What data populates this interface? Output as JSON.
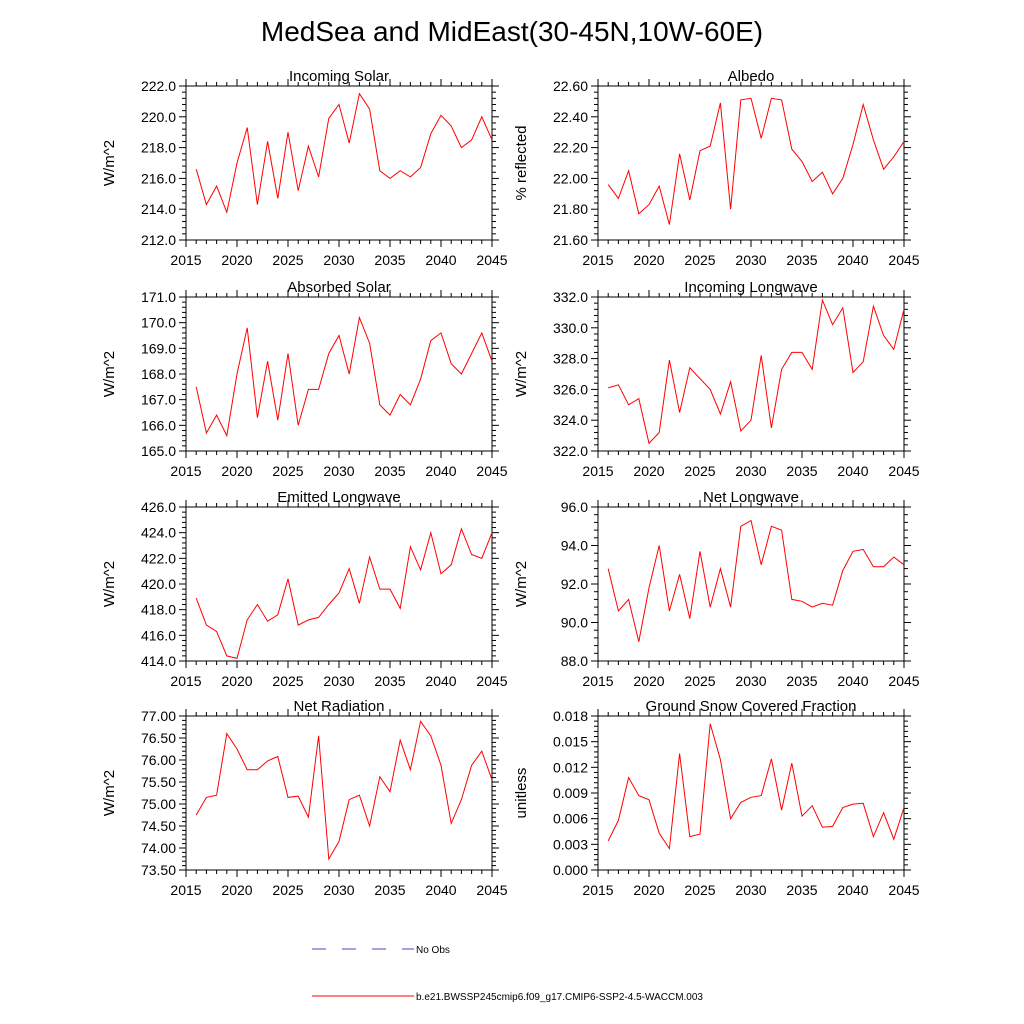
{
  "figure": {
    "title": "MedSea and MidEast(30-45N,10W-60E)",
    "line_color": "#ff0000",
    "obs_color": "#4444cc",
    "legend": {
      "obs_label": "No Obs",
      "model_label": "b.e21.BWSSP245cmip6.f09_g17.CMIP6-SSP2-4.5-WACCM.003"
    }
  },
  "chart_data": [
    {
      "type": "line",
      "title": "Incoming Solar",
      "ylabel": "W/m^2",
      "xlabel": "",
      "xlim": [
        2015,
        2045
      ],
      "ylim": [
        212,
        222
      ],
      "yticks": [
        212,
        214,
        216,
        218,
        220,
        222
      ],
      "ytick_labels": [
        "212.0",
        "214.0",
        "216.0",
        "218.0",
        "220.0",
        "222.0"
      ],
      "xticks": [
        2015,
        2020,
        2025,
        2030,
        2035,
        2040,
        2045
      ],
      "x": [
        2016,
        2017,
        2018,
        2019,
        2020,
        2021,
        2022,
        2023,
        2024,
        2025,
        2026,
        2027,
        2028,
        2029,
        2030,
        2031,
        2032,
        2033,
        2034,
        2035,
        2036,
        2037,
        2038,
        2039,
        2040,
        2041,
        2042,
        2043,
        2044,
        2045
      ],
      "series": [
        {
          "name": "b.e21.BWSSP245cmip6.f09_g17.CMIP6-SSP2-4.5-WACCM.003",
          "values": [
            216.6,
            214.3,
            215.5,
            213.8,
            217.0,
            219.3,
            214.3,
            218.4,
            214.7,
            219.0,
            215.2,
            218.1,
            216.1,
            219.9,
            220.8,
            218.3,
            221.5,
            220.5,
            216.5,
            216.0,
            216.5,
            216.1,
            216.7,
            218.9,
            220.1,
            219.4,
            218.0,
            218.5,
            220.0,
            218.5
          ]
        }
      ]
    },
    {
      "type": "line",
      "title": "Albedo",
      "ylabel": "% reflected",
      "xlabel": "",
      "xlim": [
        2015,
        2045
      ],
      "ylim": [
        21.6,
        22.6
      ],
      "yticks": [
        21.6,
        21.8,
        22.0,
        22.2,
        22.4,
        22.6
      ],
      "ytick_labels": [
        "21.60",
        "21.80",
        "22.00",
        "22.20",
        "22.40",
        "22.60"
      ],
      "xticks": [
        2015,
        2020,
        2025,
        2030,
        2035,
        2040,
        2045
      ],
      "x": [
        2016,
        2017,
        2018,
        2019,
        2020,
        2021,
        2022,
        2023,
        2024,
        2025,
        2026,
        2027,
        2028,
        2029,
        2030,
        2031,
        2032,
        2033,
        2034,
        2035,
        2036,
        2037,
        2038,
        2039,
        2040,
        2041,
        2042,
        2043,
        2044,
        2045
      ],
      "series": [
        {
          "name": "b.e21.BWSSP245cmip6.f09_g17.CMIP6-SSP2-4.5-WACCM.003",
          "values": [
            21.96,
            21.87,
            22.05,
            21.77,
            21.83,
            21.95,
            21.7,
            22.16,
            21.86,
            22.18,
            22.21,
            22.49,
            21.8,
            22.51,
            22.52,
            22.26,
            22.52,
            22.51,
            22.19,
            22.11,
            21.98,
            22.04,
            21.9,
            22.0,
            22.22,
            22.48,
            22.25,
            22.06,
            22.14,
            22.24
          ]
        }
      ]
    },
    {
      "type": "line",
      "title": "Absorbed Solar",
      "ylabel": "W/m^2",
      "xlabel": "",
      "xlim": [
        2015,
        2045
      ],
      "ylim": [
        165,
        171
      ],
      "yticks": [
        165,
        166,
        167,
        168,
        169,
        170,
        171
      ],
      "ytick_labels": [
        "165.0",
        "166.0",
        "167.0",
        "168.0",
        "169.0",
        "170.0",
        "171.0"
      ],
      "xticks": [
        2015,
        2020,
        2025,
        2030,
        2035,
        2040,
        2045
      ],
      "x": [
        2016,
        2017,
        2018,
        2019,
        2020,
        2021,
        2022,
        2023,
        2024,
        2025,
        2026,
        2027,
        2028,
        2029,
        2030,
        2031,
        2032,
        2033,
        2034,
        2035,
        2036,
        2037,
        2038,
        2039,
        2040,
        2041,
        2042,
        2043,
        2044,
        2045
      ],
      "series": [
        {
          "name": "b.e21.BWSSP245cmip6.f09_g17.CMIP6-SSP2-4.5-WACCM.003",
          "values": [
            167.5,
            165.7,
            166.4,
            165.6,
            168.0,
            169.8,
            166.3,
            168.5,
            166.2,
            168.8,
            166.0,
            167.4,
            167.4,
            168.8,
            169.5,
            168.0,
            170.2,
            169.2,
            166.8,
            166.4,
            167.2,
            166.8,
            167.8,
            169.3,
            169.6,
            168.4,
            168.0,
            168.8,
            169.6,
            168.5
          ]
        }
      ]
    },
    {
      "type": "line",
      "title": "Incoming Longwave",
      "ylabel": "W/m^2",
      "xlabel": "",
      "xlim": [
        2015,
        2045
      ],
      "ylim": [
        322,
        332
      ],
      "yticks": [
        322,
        324,
        326,
        328,
        330,
        332
      ],
      "ytick_labels": [
        "322.0",
        "324.0",
        "326.0",
        "328.0",
        "330.0",
        "332.0"
      ],
      "xticks": [
        2015,
        2020,
        2025,
        2030,
        2035,
        2040,
        2045
      ],
      "x": [
        2016,
        2017,
        2018,
        2019,
        2020,
        2021,
        2022,
        2023,
        2024,
        2025,
        2026,
        2027,
        2028,
        2029,
        2030,
        2031,
        2032,
        2033,
        2034,
        2035,
        2036,
        2037,
        2038,
        2039,
        2040,
        2041,
        2042,
        2043,
        2044,
        2045
      ],
      "series": [
        {
          "name": "b.e21.BWSSP245cmip6.f09_g17.CMIP6-SSP2-4.5-WACCM.003",
          "values": [
            326.1,
            326.3,
            325.0,
            325.4,
            322.5,
            323.2,
            327.9,
            324.5,
            327.4,
            326.7,
            326.0,
            324.4,
            326.5,
            323.3,
            324.0,
            328.2,
            323.5,
            327.3,
            328.4,
            328.4,
            327.3,
            331.8,
            330.2,
            331.3,
            327.1,
            327.8,
            331.4,
            329.5,
            328.6,
            331.2
          ]
        }
      ]
    },
    {
      "type": "line",
      "title": "Emitted Longwave",
      "ylabel": "W/m^2",
      "xlabel": "",
      "xlim": [
        2015,
        2045
      ],
      "ylim": [
        414,
        426
      ],
      "yticks": [
        414,
        416,
        418,
        420,
        422,
        424,
        426
      ],
      "ytick_labels": [
        "414.0",
        "416.0",
        "418.0",
        "420.0",
        "422.0",
        "424.0",
        "426.0"
      ],
      "xticks": [
        2015,
        2020,
        2025,
        2030,
        2035,
        2040,
        2045
      ],
      "x": [
        2016,
        2017,
        2018,
        2019,
        2020,
        2021,
        2022,
        2023,
        2024,
        2025,
        2026,
        2027,
        2028,
        2029,
        2030,
        2031,
        2032,
        2033,
        2034,
        2035,
        2036,
        2037,
        2038,
        2039,
        2040,
        2041,
        2042,
        2043,
        2044,
        2045
      ],
      "series": [
        {
          "name": "b.e21.BWSSP245cmip6.f09_g17.CMIP6-SSP2-4.5-WACCM.003",
          "values": [
            418.9,
            416.8,
            416.3,
            414.4,
            414.2,
            417.2,
            418.4,
            417.1,
            417.6,
            420.4,
            416.8,
            417.2,
            417.4,
            418.4,
            419.3,
            421.2,
            418.5,
            422.1,
            419.6,
            419.6,
            418.1,
            422.9,
            421.1,
            424.0,
            420.8,
            421.5,
            424.3,
            422.3,
            422.0,
            424.0
          ]
        }
      ]
    },
    {
      "type": "line",
      "title": "Net Longwave",
      "ylabel": "W/m^2",
      "xlabel": "",
      "xlim": [
        2015,
        2045
      ],
      "ylim": [
        88,
        96
      ],
      "yticks": [
        88,
        90,
        92,
        94,
        96
      ],
      "ytick_labels": [
        "88.0",
        "90.0",
        "92.0",
        "94.0",
        "96.0"
      ],
      "xticks": [
        2015,
        2020,
        2025,
        2030,
        2035,
        2040,
        2045
      ],
      "x": [
        2016,
        2017,
        2018,
        2019,
        2020,
        2021,
        2022,
        2023,
        2024,
        2025,
        2026,
        2027,
        2028,
        2029,
        2030,
        2031,
        2032,
        2033,
        2034,
        2035,
        2036,
        2037,
        2038,
        2039,
        2040,
        2041,
        2042,
        2043,
        2044,
        2045
      ],
      "series": [
        {
          "name": "b.e21.BWSSP245cmip6.f09_g17.CMIP6-SSP2-4.5-WACCM.003",
          "values": [
            92.8,
            90.6,
            91.2,
            89.0,
            91.8,
            94.0,
            90.6,
            92.5,
            90.2,
            93.7,
            90.8,
            92.8,
            90.8,
            95.0,
            95.3,
            93.0,
            95.0,
            94.8,
            91.2,
            91.1,
            90.8,
            91.0,
            90.9,
            92.7,
            93.7,
            93.8,
            92.9,
            92.9,
            93.4,
            93.0
          ]
        }
      ]
    },
    {
      "type": "line",
      "title": "Net Radiation",
      "ylabel": "W/m^2",
      "xlabel": "",
      "xlim": [
        2015,
        2045
      ],
      "ylim": [
        73.5,
        77.0
      ],
      "yticks": [
        73.5,
        74.0,
        74.5,
        75.0,
        75.5,
        76.0,
        76.5,
        77.0
      ],
      "ytick_labels": [
        "73.50",
        "74.00",
        "74.50",
        "75.00",
        "75.50",
        "76.00",
        "76.50",
        "77.00"
      ],
      "xticks": [
        2015,
        2020,
        2025,
        2030,
        2035,
        2040,
        2045
      ],
      "x": [
        2016,
        2017,
        2018,
        2019,
        2020,
        2021,
        2022,
        2023,
        2024,
        2025,
        2026,
        2027,
        2028,
        2029,
        2030,
        2031,
        2032,
        2033,
        2034,
        2035,
        2036,
        2037,
        2038,
        2039,
        2040,
        2041,
        2042,
        2043,
        2044,
        2045
      ],
      "series": [
        {
          "name": "b.e21.BWSSP245cmip6.f09_g17.CMIP6-SSP2-4.5-WACCM.003",
          "values": [
            74.75,
            75.15,
            75.2,
            76.6,
            76.25,
            75.78,
            75.78,
            75.98,
            76.08,
            75.15,
            75.18,
            74.7,
            76.55,
            73.75,
            74.15,
            75.1,
            75.2,
            74.5,
            75.62,
            75.28,
            76.45,
            75.78,
            76.88,
            76.55,
            75.88,
            74.56,
            75.1,
            75.88,
            76.2,
            75.55
          ]
        }
      ]
    },
    {
      "type": "line",
      "title": "Ground Snow Covered Fraction",
      "ylabel": "unitless",
      "xlabel": "",
      "xlim": [
        2015,
        2045
      ],
      "ylim": [
        0,
        0.018
      ],
      "yticks": [
        0,
        0.003,
        0.006,
        0.009,
        0.012,
        0.015,
        0.018
      ],
      "ytick_labels": [
        "0.000",
        "0.003",
        "0.006",
        "0.009",
        "0.012",
        "0.015",
        "0.018"
      ],
      "xticks": [
        2015,
        2020,
        2025,
        2030,
        2035,
        2040,
        2045
      ],
      "x": [
        2016,
        2017,
        2018,
        2019,
        2020,
        2021,
        2022,
        2023,
        2024,
        2025,
        2026,
        2027,
        2028,
        2029,
        2030,
        2031,
        2032,
        2033,
        2034,
        2035,
        2036,
        2037,
        2038,
        2039,
        2040,
        2041,
        2042,
        2043,
        2044,
        2045
      ],
      "series": [
        {
          "name": "b.e21.BWSSP245cmip6.f09_g17.CMIP6-SSP2-4.5-WACCM.003",
          "values": [
            0.0034,
            0.0058,
            0.0108,
            0.0087,
            0.0082,
            0.0043,
            0.0025,
            0.0136,
            0.0039,
            0.0042,
            0.0171,
            0.0129,
            0.006,
            0.0079,
            0.0085,
            0.0087,
            0.013,
            0.007,
            0.0125,
            0.0063,
            0.0075,
            0.005,
            0.0051,
            0.0073,
            0.0077,
            0.0078,
            0.0039,
            0.0067,
            0.0036,
            0.0073
          ]
        }
      ]
    }
  ]
}
